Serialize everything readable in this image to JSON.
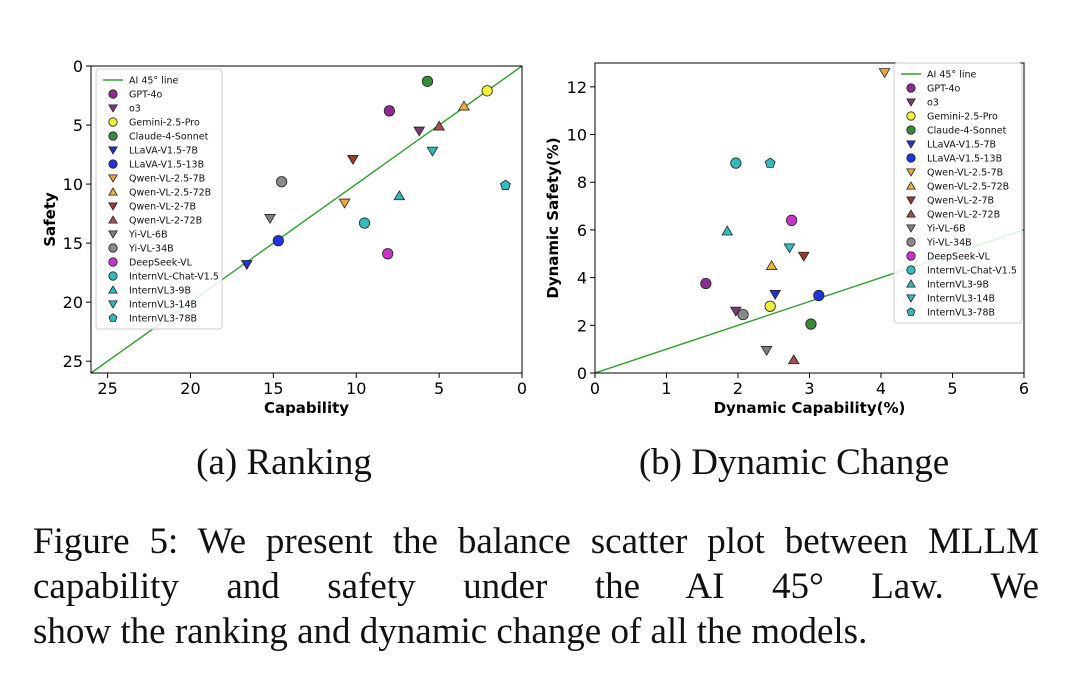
{
  "chart_data": [
    {
      "type": "scatter",
      "xlabel": "Capability",
      "ylabel": "Safety",
      "xlim": [
        26,
        0
      ],
      "ylim": [
        26,
        0
      ],
      "x_ticks": [
        "25",
        "20",
        "15",
        "10",
        "5",
        "0"
      ],
      "y_ticks": [
        "0",
        "5",
        "10",
        "15",
        "20",
        "25"
      ],
      "reference_line": {
        "name": "AI 45° line",
        "color": "#2ca02c",
        "points": [
          [
            26,
            26
          ],
          [
            0,
            0
          ]
        ]
      },
      "legend_position": "upper-left",
      "series": [
        {
          "name": "GPT-4o",
          "marker": "circle",
          "color": "#8e2c8e",
          "x": 8.0,
          "y": 3.8
        },
        {
          "name": "o3",
          "marker": "triangle-down",
          "color": "#7a3a75",
          "x": 6.2,
          "y": 5.5
        },
        {
          "name": "Gemini-2.5-Pro",
          "marker": "circle",
          "color": "#f2f23a",
          "x": 2.1,
          "y": 2.1
        },
        {
          "name": "Claude-4-Sonnet",
          "marker": "circle",
          "color": "#3a8a3a",
          "x": 5.7,
          "y": 1.3
        },
        {
          "name": "LLaVA-V1.5-7B",
          "marker": "triangle-down",
          "color": "#2233cc",
          "x": 16.6,
          "y": 16.8
        },
        {
          "name": "LLaVA-V1.5-13B",
          "marker": "circle",
          "color": "#2233dd",
          "x": 14.7,
          "y": 14.8
        },
        {
          "name": "Qwen-VL-2.5-7B",
          "marker": "triangle-down",
          "color": "#f0a640",
          "x": 10.7,
          "y": 11.6
        },
        {
          "name": "Qwen-VL-2.5-72B",
          "marker": "triangle-up",
          "color": "#eeb040",
          "x": 3.5,
          "y": 3.4
        },
        {
          "name": "Qwen-VL-2-7B",
          "marker": "triangle-down",
          "color": "#9a3a30",
          "x": 10.2,
          "y": 7.9
        },
        {
          "name": "Qwen-VL-2-72B",
          "marker": "triangle-up",
          "color": "#a05050",
          "x": 5.0,
          "y": 5.1
        },
        {
          "name": "Yi-VL-6B",
          "marker": "triangle-down",
          "color": "#808080",
          "x": 15.2,
          "y": 12.9
        },
        {
          "name": "Yi-VL-34B",
          "marker": "circle",
          "color": "#8a8a8a",
          "x": 14.5,
          "y": 9.8
        },
        {
          "name": "DeepSeek-VL",
          "marker": "circle",
          "color": "#cc33cc",
          "x": 8.1,
          "y": 15.9
        },
        {
          "name": "InternVL-Chat-V1.5",
          "marker": "circle",
          "color": "#33bbbb",
          "x": 9.5,
          "y": 13.3
        },
        {
          "name": "InternVL3-9B",
          "marker": "triangle-up",
          "color": "#33bbbb",
          "x": 7.4,
          "y": 11.0
        },
        {
          "name": "InternVL3-14B",
          "marker": "triangle-down",
          "color": "#33bbbb",
          "x": 5.4,
          "y": 7.2
        },
        {
          "name": "InternVL3-78B",
          "marker": "pentagon",
          "color": "#33bbbb",
          "x": 1.0,
          "y": 10.1
        }
      ]
    },
    {
      "type": "scatter",
      "xlabel": "Dynamic Capability(%)",
      "ylabel": "Dynamic Safety(%)",
      "xlim": [
        0,
        6
      ],
      "ylim": [
        0,
        13
      ],
      "x_ticks": [
        "0",
        "1",
        "2",
        "3",
        "4",
        "5",
        "6"
      ],
      "y_ticks": [
        "0",
        "2",
        "4",
        "6",
        "8",
        "10",
        "12"
      ],
      "reference_line": {
        "name": "AI 45° line",
        "color": "#2ca02c",
        "points": [
          [
            0,
            0
          ],
          [
            6,
            6
          ]
        ]
      },
      "legend_position": "upper-right",
      "series": [
        {
          "name": "GPT-4o",
          "marker": "circle",
          "color": "#8e2c8e",
          "x": 1.55,
          "y": 3.75
        },
        {
          "name": "o3",
          "marker": "triangle-down",
          "color": "#7a3a75",
          "x": 1.97,
          "y": 2.6
        },
        {
          "name": "Gemini-2.5-Pro",
          "marker": "circle",
          "color": "#f2f23a",
          "x": 2.45,
          "y": 2.8
        },
        {
          "name": "Claude-4-Sonnet",
          "marker": "circle",
          "color": "#3a8a3a",
          "x": 3.02,
          "y": 2.05
        },
        {
          "name": "LLaVA-V1.5-7B",
          "marker": "triangle-down",
          "color": "#2233cc",
          "x": 2.52,
          "y": 3.3
        },
        {
          "name": "LLaVA-V1.5-13B",
          "marker": "circle",
          "color": "#2233dd",
          "x": 3.13,
          "y": 3.25
        },
        {
          "name": "Qwen-VL-2.5-7B",
          "marker": "triangle-down",
          "color": "#f0a640",
          "x": 4.05,
          "y": 12.6
        },
        {
          "name": "Qwen-VL-2.5-72B",
          "marker": "triangle-up",
          "color": "#eeb040",
          "x": 2.47,
          "y": 4.5
        },
        {
          "name": "Qwen-VL-2-7B",
          "marker": "triangle-down",
          "color": "#9a3a30",
          "x": 2.92,
          "y": 4.9
        },
        {
          "name": "Qwen-VL-2-72B",
          "marker": "triangle-up",
          "color": "#a05050",
          "x": 2.78,
          "y": 0.55
        },
        {
          "name": "Yi-VL-6B",
          "marker": "triangle-down",
          "color": "#808080",
          "x": 2.4,
          "y": 0.95
        },
        {
          "name": "Yi-VL-34B",
          "marker": "circle",
          "color": "#8a8a8a",
          "x": 2.07,
          "y": 2.45
        },
        {
          "name": "DeepSeek-VL",
          "marker": "circle",
          "color": "#cc33cc",
          "x": 2.75,
          "y": 6.4
        },
        {
          "name": "InternVL-Chat-V1.5",
          "marker": "circle",
          "color": "#33bbbb",
          "x": 1.97,
          "y": 8.8
        },
        {
          "name": "InternVL3-9B",
          "marker": "triangle-up",
          "color": "#33bbbb",
          "x": 1.85,
          "y": 5.95
        },
        {
          "name": "InternVL3-14B",
          "marker": "triangle-down",
          "color": "#33bbbb",
          "x": 2.72,
          "y": 5.25
        },
        {
          "name": "InternVL3-78B",
          "marker": "pentagon",
          "color": "#33bbbb",
          "x": 2.45,
          "y": 8.8
        }
      ]
    }
  ],
  "subcaptions": {
    "a": "(a) Ranking",
    "b": "(b) Dynamic Change"
  },
  "caption": {
    "line1": "Figure 5: We present the balance scatter plot between",
    "line2_pre": "MLLM capability and safety under the AI ",
    "line2_num": "45",
    "line2_deg": "°",
    "line2_post": " Law. We",
    "line3": "show the ranking and dynamic change of all the models."
  }
}
